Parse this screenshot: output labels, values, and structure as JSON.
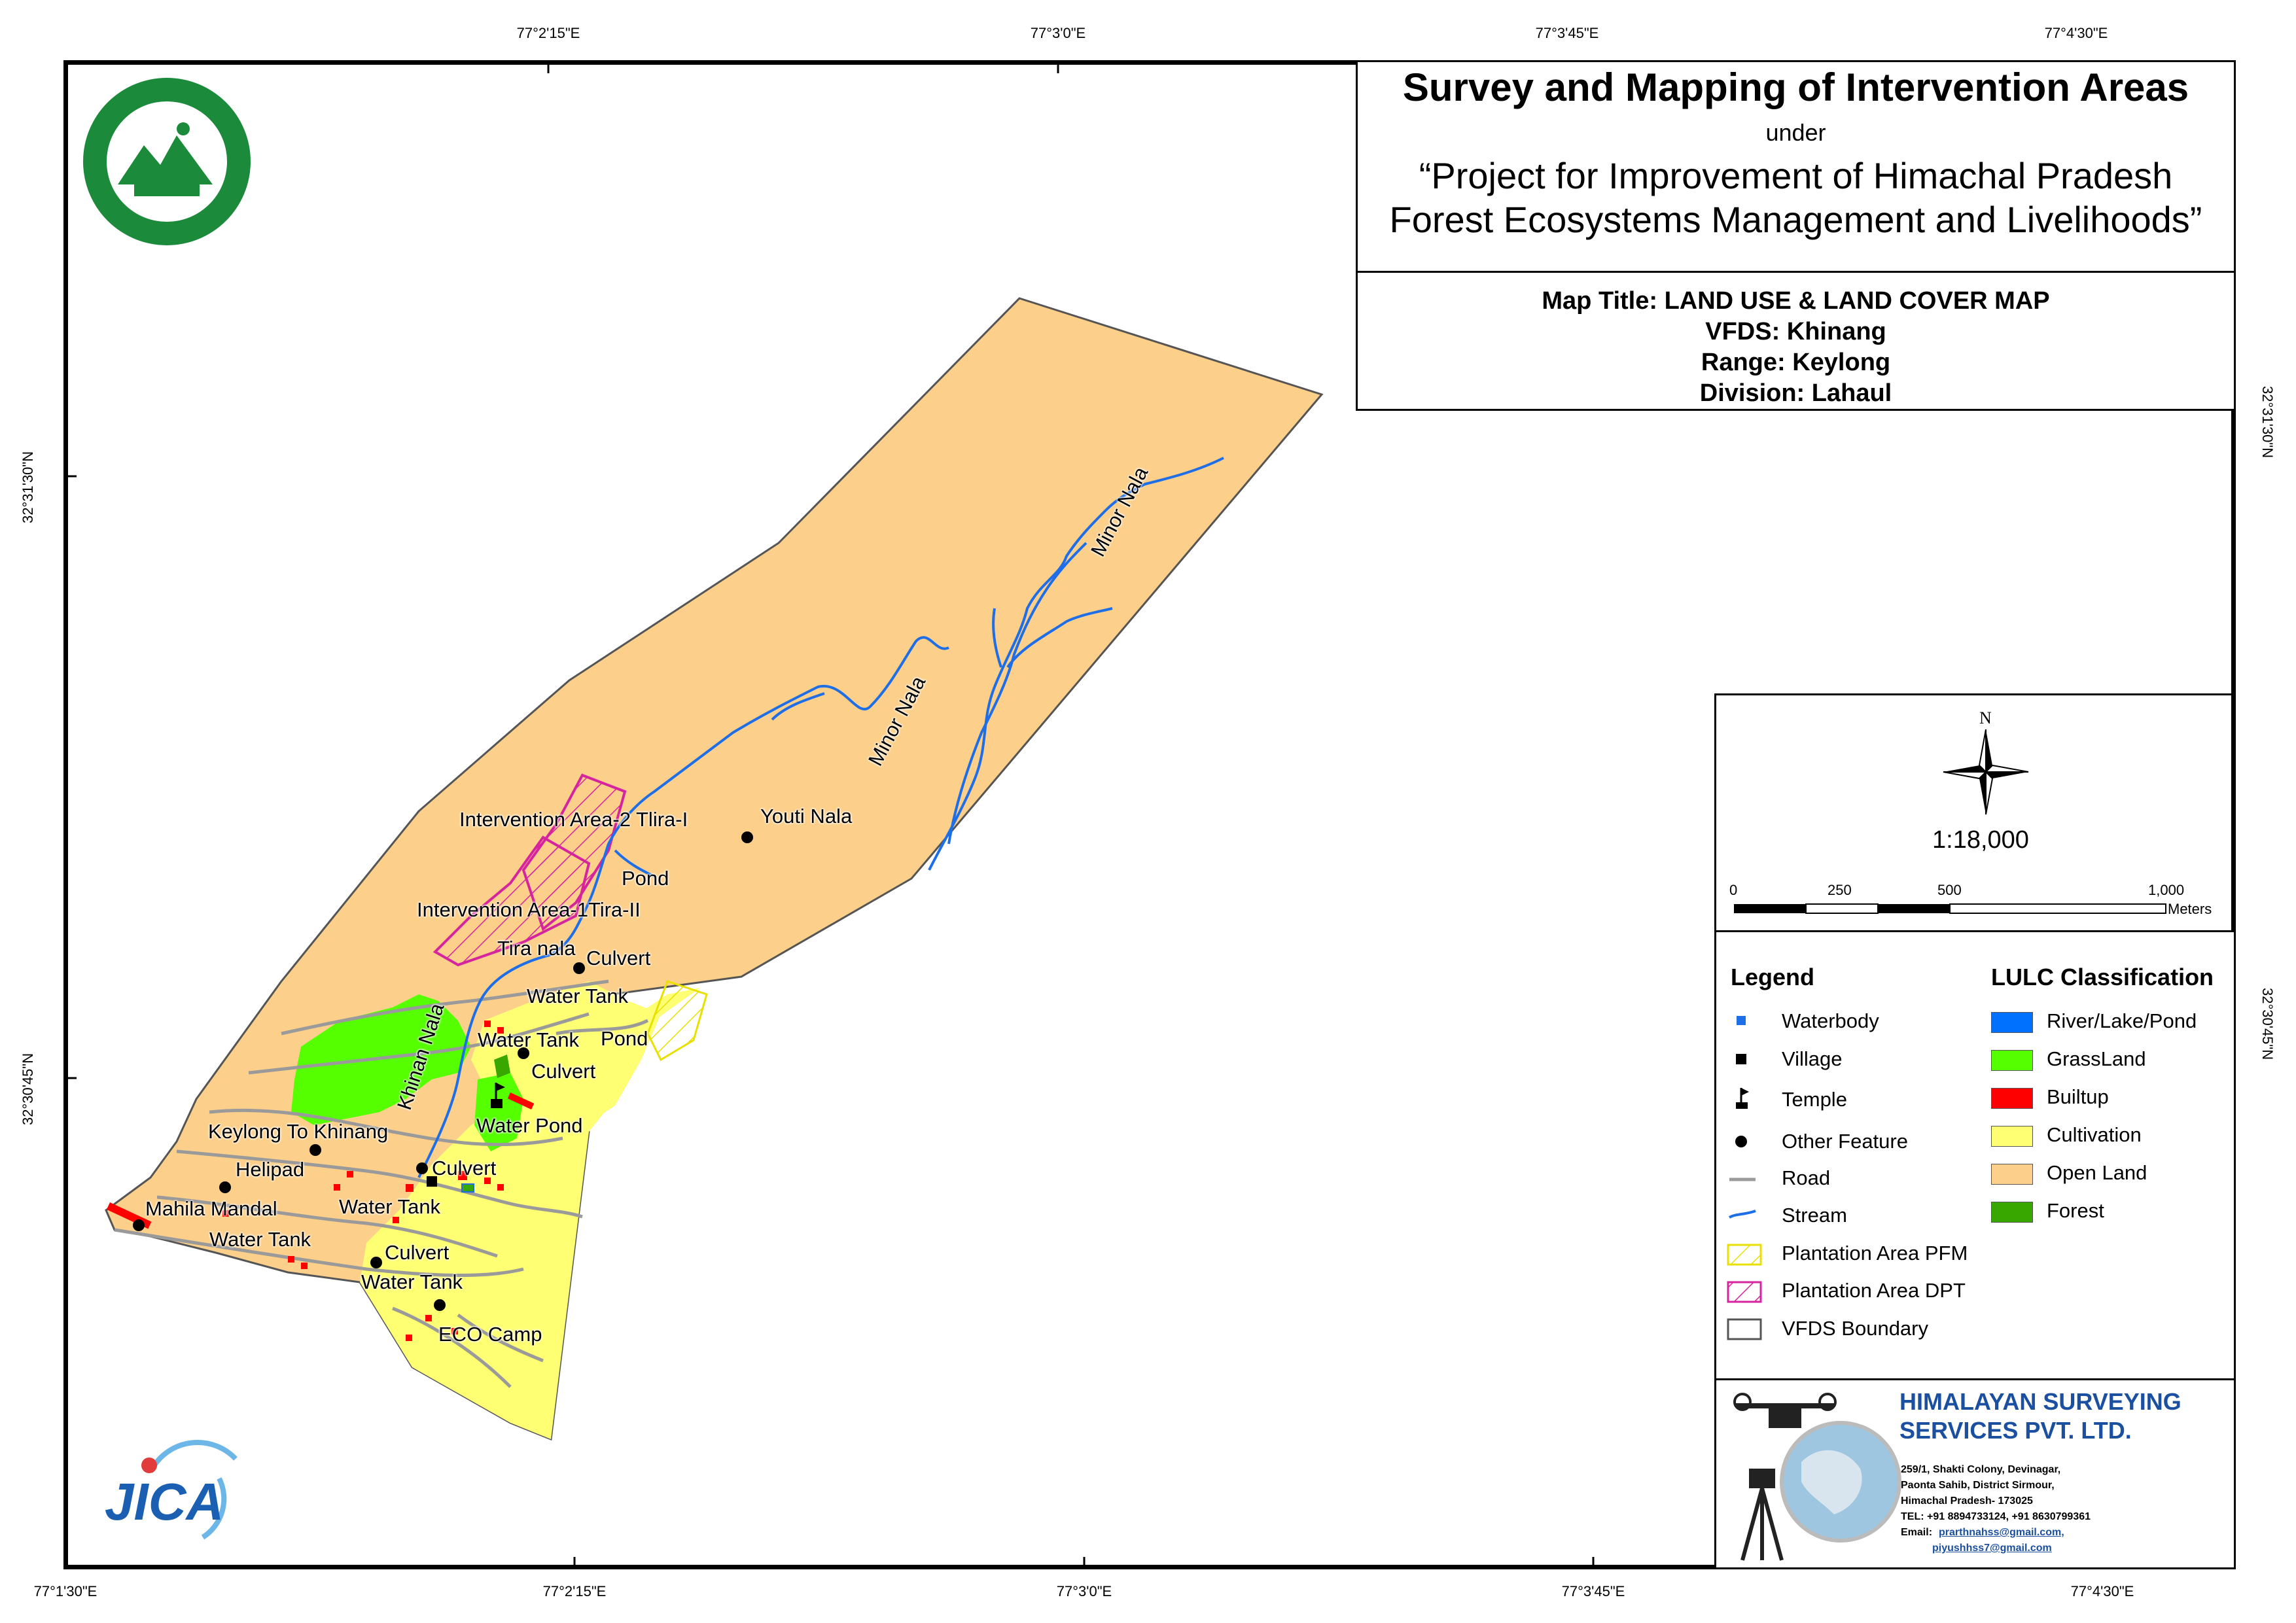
{
  "title": {
    "main": "Survey and Mapping of Intervention Areas",
    "under": "under",
    "project_line1": "“Project for Improvement of Himachal Pradesh",
    "project_line2": "Forest Ecosystems Management and Livelihoods”"
  },
  "map_info": {
    "map_title": "Map Title: LAND USE & LAND COVER MAP",
    "vfds": "VFDS: Khinang",
    "range": "Range: Keylong",
    "division": "Division: Lahaul"
  },
  "grid_ticks": {
    "top": [
      "77°2'15\"E",
      "77°3'0\"E",
      "77°3'45\"E",
      "77°4'30\"E"
    ],
    "bottom": [
      "77°1'30\"E",
      "77°2'15\"E",
      "77°3'0\"E",
      "77°3'45\"E",
      "77°4'30\"E"
    ],
    "left": [
      "32°31'30\"N",
      "32°30'45\"N"
    ],
    "right": [
      "32°31'30\"N",
      "32°30'45\"N"
    ]
  },
  "north_arrow": {
    "label": "N"
  },
  "scale": {
    "ratio": "1:18,000",
    "ticks": [
      "0",
      "250",
      "500",
      "1,000"
    ],
    "unit": "Meters"
  },
  "legend": {
    "title": "Legend",
    "items": [
      "Waterbody",
      "Village",
      "Temple",
      "Other Feature",
      "Road",
      "Stream",
      "Plantation Area PFM",
      "Plantation Area DPT",
      "VFDS Boundary"
    ]
  },
  "lulc": {
    "title": "LULC Classification",
    "classes": [
      {
        "name": "River/Lake/Pond",
        "color": "#0070ff"
      },
      {
        "name": "GrassLand",
        "color": "#55ff00"
      },
      {
        "name": "Builtup",
        "color": "#ff0000"
      },
      {
        "name": "Cultivation",
        "color": "#ffff73"
      },
      {
        "name": "Open Land",
        "color": "#fcd08b"
      },
      {
        "name": "Forest",
        "color": "#38a800"
      }
    ]
  },
  "features": {
    "intervention_area_2": "Intervention Area-2 Tlira-I",
    "youti_nala": "Youti Nala",
    "pond_1": "Pond",
    "intervention_area_1": "Intervention Area-1Tira-II",
    "tira_nala": "Tira nala",
    "culvert_1": "Culvert",
    "water_tank_1": "Water Tank",
    "water_tank_2": "Water Tank",
    "pond_2": "Pond",
    "culvert_2": "Culvert",
    "khinan_nala": "Khinan Nala",
    "water_pond": "Water Pond",
    "keylong_to_khinang": "Keylong To Khinang",
    "helipad": "Helipad",
    "culvert_3": "Culvert",
    "mahila_mandal": "Mahila Mandal",
    "water_tank_3": "Water Tank",
    "water_tank_4": "Water Tank",
    "culvert_4": "Culvert",
    "water_tank_5": "Water Tank",
    "eco_camp": "ECO Camp",
    "minor_nala_1": "Minor Nala",
    "minor_nala_2": "Minor Nala"
  },
  "company": {
    "name_line1": "HIMALAYAN SURVEYING",
    "name_line2": "SERVICES PVT. LTD.",
    "address1": "259/1, Shakti Colony, Devinagar,",
    "address2": "Paonta Sahib, District Sirmour,",
    "address3": "Himachal Pradesh- 173025",
    "tel": "TEL: +91 8894733124, +91 8630799361",
    "email_label": "Email:",
    "email1": "prarthnahss@gmail.com,",
    "email2": "piyushhss7@gmail.com"
  },
  "logos": {
    "forest_dept": "forest-department-emblem",
    "jica": "JICA"
  }
}
